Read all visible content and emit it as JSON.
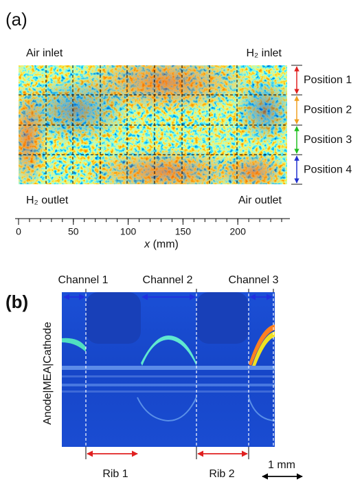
{
  "panel_a": {
    "label": "(a)",
    "corners": {
      "top_left": "Air inlet",
      "top_right": "H₂ inlet",
      "bottom_left": "H₂ outlet",
      "bottom_right": "Air outlet"
    },
    "positions": [
      "Position 1",
      "Position 2",
      "Position 3",
      "Position 4"
    ],
    "x_axis": {
      "xlim": [
        0,
        245
      ],
      "xticks": [
        0,
        50,
        100,
        150,
        200
      ],
      "xminorticks": [
        0,
        10,
        20,
        30,
        40,
        50,
        60,
        70,
        80,
        90,
        100,
        110,
        120,
        130,
        140,
        150,
        160,
        170,
        180,
        190,
        200,
        210,
        220,
        230,
        240
      ],
      "label_var": "x",
      "label_unit": "(mm)"
    }
  },
  "panel_b": {
    "label": "(b)",
    "channels": [
      "Channel 1",
      "Channel 2",
      "Channel 3"
    ],
    "side_label": "Anode|MEA|Cathode",
    "ribs": [
      "Rib 1",
      "Rib 2"
    ],
    "scale_label": "1 mm"
  }
}
